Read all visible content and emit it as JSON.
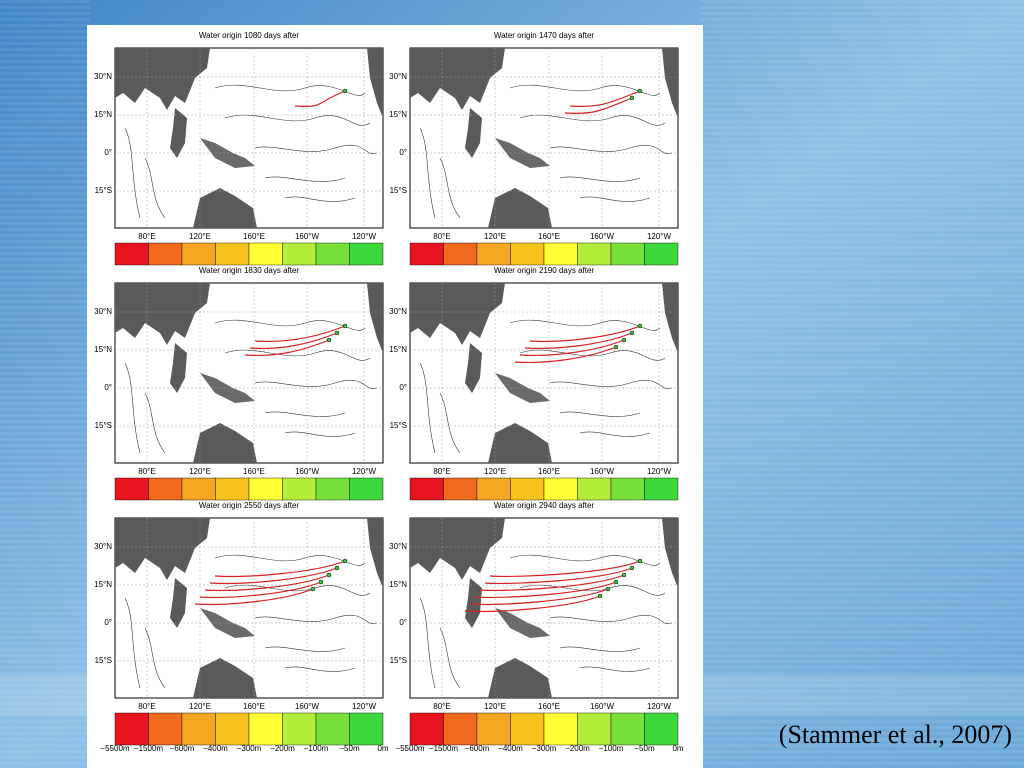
{
  "caption": "(Stammer et al., 2007)",
  "figure": {
    "panels": [
      {
        "title": "Water origin 1080 days after"
      },
      {
        "title": "Water origin 1470 days after"
      },
      {
        "title": "Water origin 1830 days after"
      },
      {
        "title": "Water origin 2190 days after"
      },
      {
        "title": "Water origin 2550 days after"
      },
      {
        "title": "Water origin 2940 days after"
      }
    ],
    "lat_labels": [
      "30°N",
      "15°N",
      "0°",
      "15°S"
    ],
    "lon_labels": [
      "80°E",
      "120°E",
      "160°E",
      "160°W",
      "120°W"
    ],
    "colorbar": {
      "colors": [
        "#e8141e",
        "#f06a1e",
        "#f5a623",
        "#f8c21c",
        "#ffff33",
        "#b4ee3a",
        "#78e03a",
        "#3cd83c"
      ],
      "labels": [
        "−5500m",
        "−1500m",
        "−600m",
        "−400m",
        "−300m",
        "−200m",
        "−100m",
        "−50m",
        "0m"
      ]
    }
  }
}
